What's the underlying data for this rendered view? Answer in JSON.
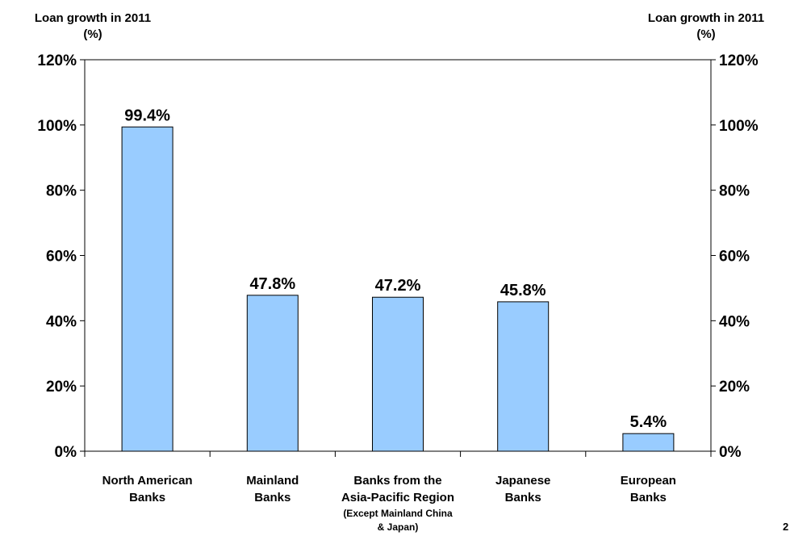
{
  "chart_data": {
    "type": "bar",
    "categories": [
      [
        "North American",
        "Banks"
      ],
      [
        "Mainland",
        "Banks"
      ],
      [
        "Banks from the",
        "Asia-Pacific Region",
        "(Except Mainland China",
        "& Japan)"
      ],
      [
        "Japanese",
        "Banks"
      ],
      [
        "European",
        "Banks"
      ]
    ],
    "values": [
      99.4,
      47.8,
      47.2,
      45.8,
      5.4
    ],
    "data_labels": [
      "99.4%",
      "47.8%",
      "47.2%",
      "45.8%",
      "5.4%"
    ],
    "ylabel_left": [
      "Loan growth in 2011",
      "(%)"
    ],
    "ylabel_right": [
      "Loan growth in 2011",
      "(%)"
    ],
    "yticks": [
      0,
      20,
      40,
      60,
      80,
      100,
      120
    ],
    "ytick_labels": [
      "0%",
      "20%",
      "40%",
      "60%",
      "80%",
      "100%",
      "120%"
    ],
    "ylim": [
      0,
      120
    ],
    "grid": false,
    "bar_color": "#99ccff",
    "bar_edge_color": "#000000"
  },
  "page_number": "2"
}
